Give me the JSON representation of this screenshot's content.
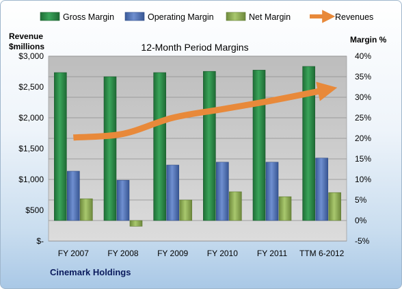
{
  "chart_data": {
    "type": "bar",
    "title": "12-Month Period Margins",
    "company": "Cinemark Holdings",
    "categories": [
      "FY 2007",
      "FY 2008",
      "FY 2009",
      "FY 2010",
      "FY 2011",
      "TTM 6-2012"
    ],
    "left_axis": {
      "label_line1": "Revenue",
      "label_line2": "$millions",
      "range": [
        0,
        3000
      ],
      "ticks": [
        "$-",
        "$500",
        "$1,000",
        "$1,500",
        "$2,000",
        "$2,500",
        "$3,000"
      ]
    },
    "right_axis": {
      "label": "Margin %",
      "range": [
        -5,
        40
      ],
      "ticks": [
        "-5%",
        "0%",
        "5%",
        "10%",
        "15%",
        "20%",
        "25%",
        "30%",
        "35%",
        "40%"
      ]
    },
    "series": [
      {
        "name": "Gross Margin",
        "type": "bar",
        "axis": "right",
        "color": "#2e8b4a",
        "values": [
          36.0,
          35.0,
          36.0,
          36.3,
          36.6,
          37.5
        ]
      },
      {
        "name": "Operating Margin",
        "type": "bar",
        "axis": "right",
        "color": "#4f72b8",
        "values": [
          12.0,
          9.8,
          13.5,
          14.2,
          14.2,
          15.2
        ]
      },
      {
        "name": "Net Margin",
        "type": "bar",
        "axis": "right",
        "color": "#93b35a",
        "values": [
          5.3,
          -1.4,
          5.0,
          7.0,
          5.8,
          6.8
        ]
      },
      {
        "name": "Revenues",
        "type": "line",
        "axis": "left",
        "color": "#e8893a",
        "values": [
          1680,
          1740,
          2000,
          2140,
          2280,
          2440
        ]
      }
    ],
    "grid": true,
    "legend_position": "top"
  }
}
